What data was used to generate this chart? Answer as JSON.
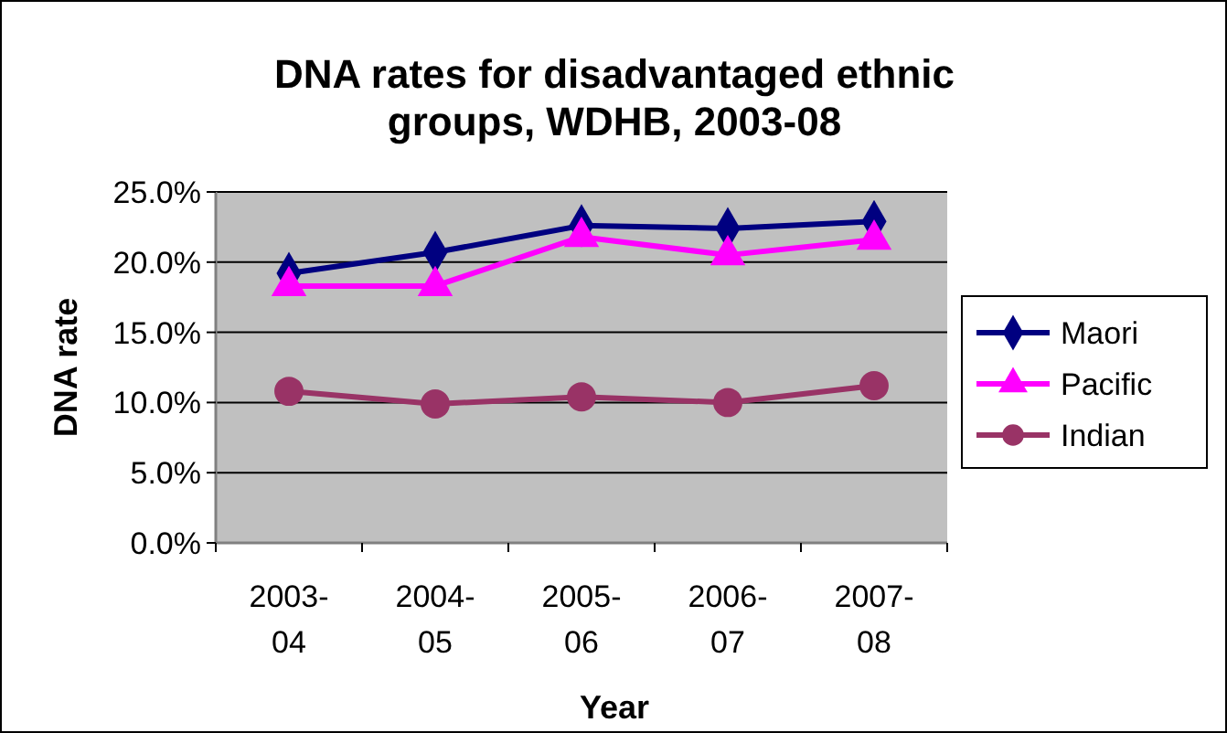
{
  "chart_data": {
    "type": "line",
    "title": "DNA rates for disadvantaged ethnic groups, WDHB, 2003-08",
    "xlabel": "Year",
    "ylabel": "DNA rate",
    "categories": [
      "2003-04",
      "2004-05",
      "2005-06",
      "2006-07",
      "2007-08"
    ],
    "series": [
      {
        "name": "Maori",
        "color": "#000080",
        "marker": "diamond",
        "values": [
          19.2,
          20.7,
          22.6,
          22.4,
          22.9
        ]
      },
      {
        "name": "Pacific",
        "color": "#ff00ff",
        "marker": "triangle",
        "values": [
          18.3,
          18.3,
          21.8,
          20.5,
          21.6
        ]
      },
      {
        "name": "Indian",
        "color": "#993366",
        "marker": "circle",
        "values": [
          10.8,
          9.9,
          10.4,
          10.0,
          11.2
        ]
      }
    ],
    "ylim": [
      0,
      25
    ],
    "yticks": [
      {
        "value": 0,
        "label": "0.0%"
      },
      {
        "value": 5,
        "label": "5.0%"
      },
      {
        "value": 10,
        "label": "10.0%"
      },
      {
        "value": 15,
        "label": "15.0%"
      },
      {
        "value": 20,
        "label": "20.0%"
      },
      {
        "value": 25,
        "label": "25.0%"
      }
    ],
    "grid": "y",
    "legend": "right"
  }
}
